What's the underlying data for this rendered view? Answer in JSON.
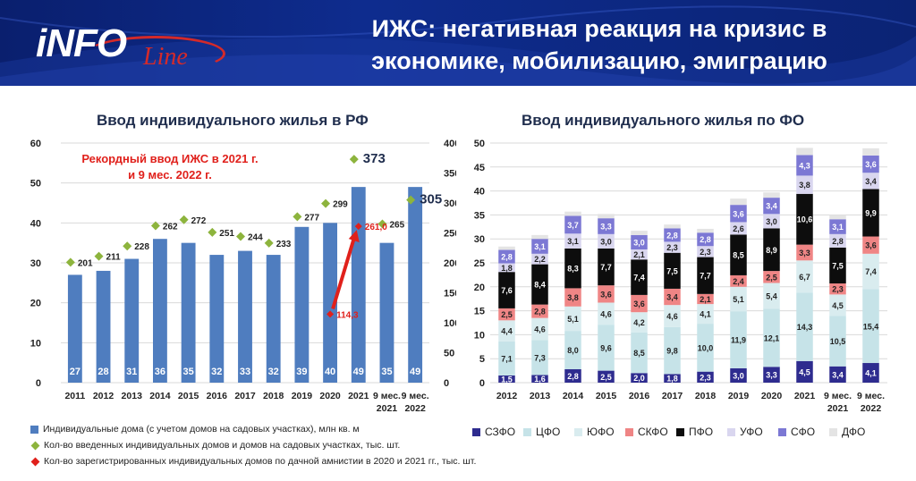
{
  "header": {
    "logo_text_info": "iNFO",
    "logo_text_line": "Line",
    "title_line1": "ИЖС: негативная реакция на кризис в",
    "title_line2": "экономике, мобилизацию, эмиграцию"
  },
  "colors": {
    "header_bg": "#0e2c8e",
    "bar_blue": "#4f7dbf",
    "green_marker": "#8db43d",
    "red_marker": "#e0201b",
    "szfo": "#2e2c8f",
    "cfo": "#c6e3e8",
    "yufo": "#d9ecef",
    "skfo": "#ef8585",
    "pfo": "#0d0d0d",
    "ufo": "#d9d6ef",
    "sfo": "#7c78d4",
    "dfo": "#e4e4e4"
  },
  "chart_data": [
    {
      "type": "bar",
      "title": "Ввод индивидуального жилья в РФ",
      "annotation": "Рекордный ввод ИЖС в 2021 г. и 9 мес. 2022 г.",
      "annotation_line1": "Рекордный ввод ИЖС в 2021 г.",
      "annotation_line2": "и 9 мес. 2022 г.",
      "categories": [
        {
          "top": "2011",
          "bottom": ""
        },
        {
          "top": "2012",
          "bottom": ""
        },
        {
          "top": "2013",
          "bottom": ""
        },
        {
          "top": "2014",
          "bottom": ""
        },
        {
          "top": "2015",
          "bottom": ""
        },
        {
          "top": "2016",
          "bottom": ""
        },
        {
          "top": "2017",
          "bottom": ""
        },
        {
          "top": "2018",
          "bottom": ""
        },
        {
          "top": "2019",
          "bottom": ""
        },
        {
          "top": "2020",
          "bottom": ""
        },
        {
          "top": "2021",
          "bottom": ""
        },
        {
          "top": "9 мес.",
          "bottom": "2021"
        },
        {
          "top": "9 мес.",
          "bottom": "2022"
        }
      ],
      "bars": {
        "name": "Индивидуальные дома (с учетом домов на садовых участках), млн кв. м",
        "values": [
          27,
          28,
          31,
          36,
          35,
          32,
          33,
          32,
          39,
          40,
          49,
          35,
          49
        ],
        "labels": [
          "27",
          "28",
          "31",
          "36",
          "35",
          "32",
          "33",
          "32",
          "39",
          "40",
          "49",
          "35",
          "49"
        ],
        "axis": "left",
        "ylim": [
          0,
          60
        ],
        "yticks": [
          0,
          10,
          20,
          30,
          40,
          50,
          60
        ]
      },
      "markers": {
        "name": "Кол-во введенных индивидуальных домов и домов на садовых участках,  тыс. шт.",
        "values": [
          201,
          211,
          228,
          262,
          272,
          251,
          244,
          233,
          277,
          299,
          373,
          265,
          305
        ],
        "labels": [
          "201",
          "211",
          "228",
          "262",
          "272",
          "251",
          "244",
          "233",
          "277",
          "299",
          "373",
          "265",
          "305"
        ],
        "axis": "right",
        "ylim": [
          0,
          400
        ],
        "yticks": [
          0,
          50,
          100,
          150,
          200,
          250,
          300,
          350,
          400
        ]
      },
      "amnesty": {
        "name": "Кол-во зарегистрированных индивидуальных домов по дачной амнистии в 2020 и 2021 гг.,  тыс. шт.",
        "points": [
          {
            "category_index": 9,
            "value": 114.3,
            "label": "114,3"
          },
          {
            "category_index": 10,
            "value": 261.0,
            "label": "261,0"
          }
        ],
        "axis": "right"
      }
    },
    {
      "type": "bar",
      "stacked": true,
      "title": "Ввод индивидуального жилья по ФО",
      "categories": [
        {
          "top": "2012",
          "bottom": ""
        },
        {
          "top": "2013",
          "bottom": ""
        },
        {
          "top": "2014",
          "bottom": ""
        },
        {
          "top": "2015",
          "bottom": ""
        },
        {
          "top": "2016",
          "bottom": ""
        },
        {
          "top": "2017",
          "bottom": ""
        },
        {
          "top": "2018",
          "bottom": ""
        },
        {
          "top": "2019",
          "bottom": ""
        },
        {
          "top": "2020",
          "bottom": ""
        },
        {
          "top": "2021",
          "bottom": ""
        },
        {
          "top": "9 мес.",
          "bottom": "2021"
        },
        {
          "top": "9 мес.",
          "bottom": "2022"
        }
      ],
      "ylim": [
        0,
        50
      ],
      "yticks": [
        0,
        5,
        10,
        15,
        20,
        25,
        30,
        35,
        40,
        45,
        50
      ],
      "series": [
        {
          "name": "СЗФО",
          "values": [
            1.5,
            1.6,
            2.8,
            2.5,
            2.0,
            1.8,
            2.3,
            3.0,
            3.3,
            4.5,
            3.4,
            4.1
          ],
          "labels": [
            "1,5",
            "1,6",
            "2,8",
            "2,5",
            "2,0",
            "1,8",
            "2,3",
            "3,0",
            "3,3",
            "4,5",
            "3,4",
            "4,1"
          ]
        },
        {
          "name": "ЦФО",
          "values": [
            7.1,
            7.3,
            8.0,
            9.6,
            8.5,
            9.8,
            10.0,
            11.9,
            12.1,
            14.3,
            10.5,
            15.4
          ],
          "labels": [
            "7,1",
            "7,3",
            "8,0",
            "9,6",
            "8,5",
            "9,8",
            "10,0",
            "11,9",
            "12,1",
            "14,3",
            "10,5",
            "15,4"
          ]
        },
        {
          "name": "ЮФО",
          "values": [
            4.4,
            4.6,
            5.1,
            4.6,
            4.2,
            4.6,
            4.1,
            5.1,
            5.4,
            6.7,
            4.5,
            7.4
          ],
          "labels": [
            "4,4",
            "4,6",
            "5,1",
            "4,6",
            "4,2",
            "4,6",
            "4,1",
            "5,1",
            "5,4",
            "6,7",
            "4,5",
            "7,4"
          ]
        },
        {
          "name": "СКФО",
          "values": [
            2.5,
            2.8,
            3.8,
            3.6,
            3.6,
            3.4,
            2.1,
            2.4,
            2.5,
            3.3,
            2.3,
            3.6
          ],
          "labels": [
            "2,5",
            "2,8",
            "3,8",
            "3,6",
            "3,6",
            "3,4",
            "2,1",
            "2,4",
            "2,5",
            "3,3",
            "2,3",
            "3,6"
          ]
        },
        {
          "name": "ПФО",
          "values": [
            7.6,
            8.4,
            8.3,
            7.7,
            7.4,
            7.5,
            7.7,
            8.5,
            8.9,
            10.6,
            7.5,
            9.9
          ],
          "labels": [
            "7,6",
            "8,4",
            "8,3",
            "7,7",
            "7,4",
            "7,5",
            "7,7",
            "8,5",
            "8,9",
            "10,6",
            "7,5",
            "9,9"
          ]
        },
        {
          "name": "УФО",
          "values": [
            1.8,
            2.2,
            3.1,
            3.0,
            2.1,
            2.3,
            2.3,
            2.6,
            3.0,
            3.8,
            2.8,
            3.4
          ],
          "labels": [
            "1,8",
            "2,2",
            "3,1",
            "3,0",
            "2,1",
            "2,3",
            "2,3",
            "2,6",
            "3,0",
            "3,8",
            "2,8",
            "3,4"
          ]
        },
        {
          "name": "СФО",
          "values": [
            2.8,
            3.1,
            3.7,
            3.3,
            3.0,
            2.8,
            2.8,
            3.6,
            3.4,
            4.3,
            3.1,
            3.6
          ],
          "labels": [
            "2,8",
            "3,1",
            "3,7",
            "3,3",
            "3,0",
            "2,8",
            "2,8",
            "3,6",
            "3,4",
            "4,3",
            "3,1",
            "3,6"
          ]
        },
        {
          "name": "ДФО",
          "values": [
            0.7,
            0.8,
            0.9,
            0.9,
            0.9,
            0.8,
            0.8,
            1.3,
            1.1,
            1.5,
            0.9,
            1.5
          ],
          "labels": [
            "",
            "",
            "",
            "",
            "",
            "",
            "",
            "",
            "",
            "",
            "",
            ""
          ]
        }
      ],
      "legend_position": "bottom"
    }
  ]
}
